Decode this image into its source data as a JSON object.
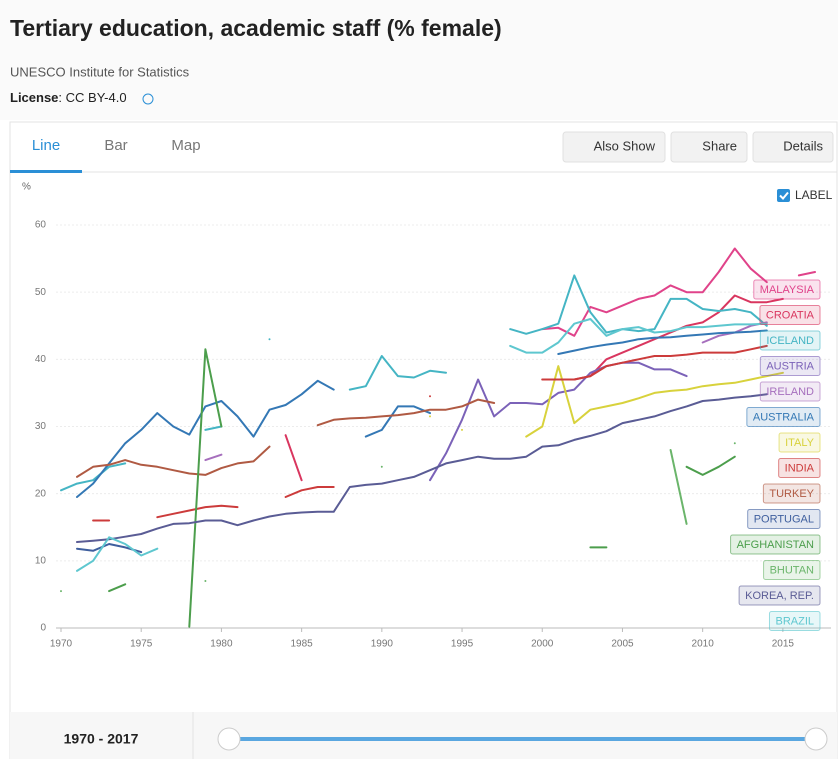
{
  "header": {
    "title": "Tertiary education, academic staff (% female)",
    "source": "UNESCO Institute for Statistics",
    "license_label": "License",
    "license_value": ": CC BY-4.0"
  },
  "tabs": [
    "Line",
    "Bar",
    "Map"
  ],
  "buttons": [
    "Also Show",
    "Share",
    "Details"
  ],
  "label_toggle": "LABEL",
  "range_label": "1970 - 2017",
  "chart_data": {
    "type": "line",
    "y_label": "%",
    "x": [
      1970,
      1971,
      1972,
      1973,
      1974,
      1975,
      1976,
      1977,
      1978,
      1979,
      1980,
      1981,
      1982,
      1983,
      1984,
      1985,
      1986,
      1987,
      1988,
      1989,
      1990,
      1991,
      1992,
      1993,
      1994,
      1995,
      1996,
      1997,
      1998,
      1999,
      2000,
      2001,
      2002,
      2003,
      2004,
      2005,
      2006,
      2007,
      2008,
      2009,
      2010,
      2011,
      2012,
      2013,
      2014,
      2015,
      2016,
      2017
    ],
    "xlim": [
      1970,
      2018
    ],
    "xticks": [
      1970,
      1975,
      1980,
      1985,
      1990,
      1995,
      2000,
      2005,
      2010,
      2015
    ],
    "ylim": [
      0,
      60
    ],
    "yticks": [
      0,
      10,
      20,
      30,
      40,
      50,
      60
    ],
    "grid": true,
    "series": [
      {
        "name": "MALAYSIA",
        "color": "#e0438a",
        "values": [
          null,
          null,
          null,
          null,
          null,
          null,
          null,
          null,
          null,
          null,
          null,
          null,
          null,
          null,
          null,
          null,
          null,
          null,
          null,
          null,
          null,
          null,
          null,
          null,
          null,
          null,
          null,
          null,
          null,
          null,
          44.5,
          44.7,
          43.5,
          47.8,
          47,
          48,
          49,
          49.5,
          51,
          50,
          50,
          53,
          56.5,
          53.5,
          51.5,
          null,
          52.5,
          53
        ]
      },
      {
        "name": "CROATIA",
        "color": "#d9365f",
        "values": [
          null,
          null,
          null,
          null,
          null,
          null,
          null,
          null,
          null,
          null,
          null,
          null,
          null,
          null,
          28.7,
          22,
          null,
          null,
          null,
          null,
          null,
          null,
          null,
          null,
          null,
          null,
          null,
          null,
          null,
          null,
          37,
          37,
          37,
          37.5,
          40,
          41,
          42,
          43,
          44,
          45,
          45.5,
          47,
          49.5,
          48.5,
          48.5,
          49,
          null,
          null
        ]
      },
      {
        "name": "ICELAND",
        "color": "#45b5c4",
        "values": [
          20.5,
          21.5,
          22,
          24,
          24.5,
          null,
          null,
          null,
          null,
          29.5,
          30,
          null,
          null,
          43,
          null,
          null,
          null,
          null,
          35.5,
          36,
          40.5,
          37.5,
          37.3,
          38.3,
          38,
          null,
          null,
          null,
          44.5,
          43.8,
          44.5,
          45.3,
          52.5,
          47,
          44,
          44.5,
          44.2,
          44.5,
          49,
          49,
          47.5,
          47.2,
          47.5,
          47,
          45,
          null,
          null,
          null
        ]
      },
      {
        "name": "AUSTRIA",
        "color": "#7b62b8",
        "values": [
          null,
          null,
          null,
          null,
          null,
          null,
          null,
          null,
          null,
          null,
          null,
          null,
          null,
          null,
          null,
          null,
          null,
          null,
          null,
          null,
          null,
          null,
          null,
          22,
          26,
          31,
          37,
          31.5,
          33.5,
          33.5,
          33.3,
          35,
          35.5,
          38,
          39,
          39.5,
          39.5,
          38.5,
          38.5,
          37.5,
          null,
          null,
          null,
          null,
          null,
          null,
          null,
          null
        ]
      },
      {
        "name": "IRELAND",
        "color": "#a66fbd",
        "values": [
          null,
          null,
          null,
          null,
          null,
          null,
          null,
          null,
          null,
          25,
          25.8,
          null,
          null,
          null,
          null,
          null,
          null,
          null,
          null,
          null,
          null,
          null,
          null,
          null,
          null,
          null,
          null,
          null,
          null,
          null,
          null,
          null,
          null,
          null,
          null,
          null,
          null,
          null,
          null,
          null,
          42.5,
          43.5,
          44,
          45,
          45.5,
          null,
          null,
          null
        ]
      },
      {
        "name": "AUSTRALIA",
        "color": "#3478b5",
        "values": [
          null,
          19.5,
          21.5,
          24.5,
          27.5,
          29.5,
          32,
          30,
          28.8,
          33,
          33.8,
          31.5,
          28.5,
          32.5,
          33.2,
          34.8,
          36.8,
          35.5,
          null,
          28.5,
          29.5,
          33,
          33,
          32,
          null,
          null,
          null,
          null,
          null,
          null,
          null,
          40.8,
          41.3,
          41.8,
          42.2,
          42.5,
          43,
          43.2,
          43.3,
          43.5,
          43.7,
          43.9,
          44,
          44.1,
          44.3,
          null,
          null,
          null
        ]
      },
      {
        "name": "ITALY",
        "color": "#d8d23c",
        "values": [
          null,
          null,
          null,
          null,
          null,
          null,
          null,
          null,
          null,
          null,
          null,
          null,
          null,
          null,
          null,
          null,
          null,
          null,
          null,
          null,
          null,
          null,
          null,
          31.5,
          null,
          29.5,
          null,
          null,
          null,
          28.5,
          30,
          39,
          30.5,
          32.5,
          33,
          33.5,
          34.2,
          35,
          35.3,
          35.5,
          36,
          36.3,
          36.5,
          37,
          37.5,
          38,
          null,
          null
        ]
      },
      {
        "name": "INDIA",
        "color": "#cc3b3b",
        "values": [
          null,
          null,
          16,
          16,
          null,
          null,
          16.5,
          17,
          17.5,
          18,
          18.2,
          18,
          null,
          null,
          19.5,
          20.5,
          21,
          21,
          null,
          null,
          null,
          null,
          null,
          34.5,
          null,
          null,
          null,
          null,
          null,
          null,
          37,
          37,
          37,
          37.5,
          39,
          39.5,
          40,
          40.5,
          40.5,
          40.7,
          41,
          41,
          41,
          41.5,
          42,
          null,
          null,
          null
        ]
      },
      {
        "name": "TURKEY",
        "color": "#b05a43",
        "values": [
          null,
          22.5,
          24,
          24.3,
          25,
          24.3,
          24,
          23.5,
          23,
          22.8,
          23.8,
          24.5,
          24.8,
          27,
          null,
          null,
          30.2,
          31,
          31.2,
          31.3,
          31.5,
          31.7,
          32,
          32.5,
          32.5,
          33,
          34,
          33.5,
          null,
          null,
          null,
          null,
          null,
          null,
          null,
          null,
          null,
          null,
          null,
          null,
          null,
          null,
          null,
          null,
          null,
          null,
          null,
          null
        ]
      },
      {
        "name": "PORTUGAL",
        "color": "#3f5f9e",
        "values": [
          null,
          11.8,
          11.5,
          12.5,
          12,
          11.3,
          null,
          null,
          null,
          null,
          null,
          null,
          null,
          null,
          null,
          null,
          null,
          null,
          null,
          null,
          null,
          null,
          null,
          null,
          null,
          null,
          null,
          null,
          null,
          null,
          null,
          null,
          null,
          null,
          null,
          null,
          null,
          null,
          null,
          null,
          null,
          null,
          null,
          null,
          null,
          null,
          null,
          null
        ]
      },
      {
        "name": "AFGHANISTAN",
        "color": "#4c9e4c",
        "values": [
          null,
          null,
          null,
          5.5,
          6.5,
          null,
          null,
          null,
          0.2,
          41.5,
          30,
          null,
          null,
          null,
          null,
          null,
          null,
          null,
          null,
          null,
          null,
          null,
          null,
          null,
          null,
          null,
          null,
          null,
          null,
          null,
          null,
          null,
          null,
          12,
          12,
          null,
          null,
          null,
          null,
          24,
          22.8,
          24,
          25.5,
          null,
          null,
          null,
          null,
          null
        ]
      },
      {
        "name": "BHUTAN",
        "color": "#6bb56b",
        "values": [
          5.5,
          null,
          null,
          null,
          null,
          null,
          null,
          null,
          null,
          7,
          null,
          null,
          null,
          null,
          null,
          null,
          null,
          null,
          null,
          null,
          24,
          null,
          null,
          null,
          null,
          null,
          null,
          null,
          null,
          null,
          null,
          null,
          null,
          null,
          null,
          null,
          null,
          null,
          26.5,
          15.5,
          null,
          null,
          27.5,
          null,
          null,
          null,
          null,
          null
        ]
      },
      {
        "name": "KOREA, REP.",
        "color": "#5a5c95",
        "values": [
          null,
          12.8,
          13,
          13.2,
          13.6,
          14,
          14.8,
          15.5,
          15.6,
          16,
          16,
          15.3,
          16,
          16.6,
          17,
          17.2,
          17.3,
          17.3,
          21,
          21.3,
          21.5,
          22,
          22.5,
          23.5,
          24.5,
          25,
          25.5,
          25.2,
          25.2,
          25.5,
          27,
          27.2,
          28,
          28.6,
          29.3,
          30.5,
          31,
          31.5,
          32.3,
          33,
          33.8,
          34,
          34.3,
          34.5,
          34.8,
          null,
          null,
          null
        ]
      },
      {
        "name": "BRAZIL",
        "color": "#5ec7cf",
        "values": [
          null,
          8.5,
          10,
          13.5,
          12.5,
          10.8,
          11.8,
          null,
          null,
          null,
          null,
          null,
          null,
          null,
          null,
          null,
          null,
          null,
          null,
          null,
          null,
          null,
          null,
          null,
          null,
          null,
          null,
          null,
          42,
          41,
          41,
          42.5,
          45.3,
          46,
          43.5,
          44.5,
          44.8,
          44,
          44.2,
          44.8,
          44.8,
          45,
          45.2,
          45.2,
          45.3,
          null,
          null,
          null
        ]
      }
    ]
  }
}
